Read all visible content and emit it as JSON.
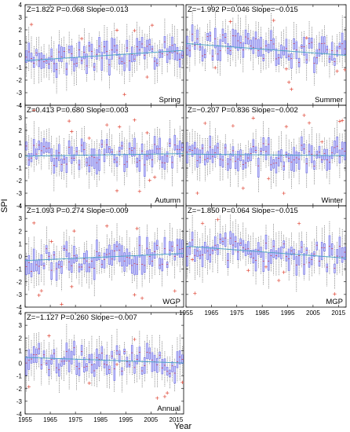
{
  "figure": {
    "ylabel": "SPI",
    "xlabel": "Year"
  },
  "chart_data": {
    "type": "box",
    "x_range": [
      1955,
      2018
    ],
    "ylim": [
      -4,
      4
    ],
    "yticks": [
      "-4",
      "-3",
      "-2",
      "-1",
      "0",
      "1",
      "2",
      "3",
      "4"
    ],
    "xticks": [
      "1955",
      "1965",
      "1975",
      "1985",
      "1995",
      "2005",
      "2015"
    ],
    "series_color": "#7b7bea",
    "trend_color": "#4fa3c7",
    "outlier_color": "#e04a3a",
    "panels": [
      {
        "name": "Spring",
        "stats": "Z=1.822 P=0.068 Slope=0.013",
        "slope": 0.013,
        "intercept": -0.05,
        "show_xticks": false
      },
      {
        "name": "Summer",
        "stats": "Z=−1.992 P=0.046 Slope=−0.015",
        "slope": -0.015,
        "intercept": 0.45,
        "show_xticks": false
      },
      {
        "name": "Autumn",
        "stats": "Z=0.413 P=0.680 Slope=0.003",
        "slope": 0.003,
        "intercept": 0.05,
        "show_xticks": false
      },
      {
        "name": "Winter",
        "stats": "Z=−0.207 P=0.836 Slope=−0.002",
        "slope": -0.002,
        "intercept": 0.05,
        "show_xticks": false
      },
      {
        "name": "WGP",
        "stats": "Z=1.093 P=0.274 Slope=0.009",
        "slope": 0.009,
        "intercept": -0.05,
        "show_xticks": false
      },
      {
        "name": "MGP",
        "stats": "Z=−1.850 P=0.064 Slope=−0.015",
        "slope": -0.015,
        "intercept": 0.35,
        "show_xticks": true
      },
      {
        "name": "Annual",
        "stats": "Z=−1.127 P=0.260 Slope=−0.007",
        "slope": -0.007,
        "intercept": 0.25,
        "show_xticks": true
      }
    ]
  }
}
